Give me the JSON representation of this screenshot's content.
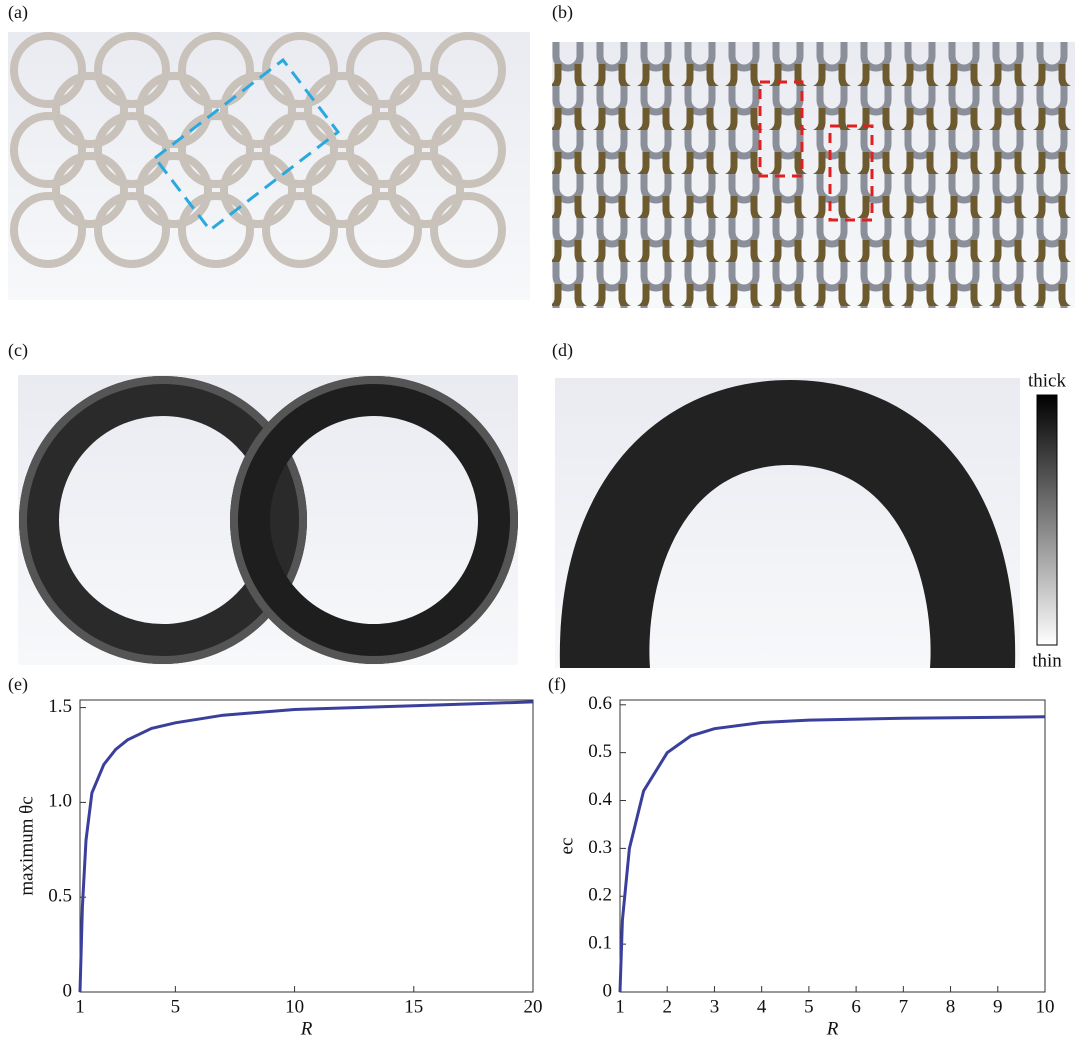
{
  "panels": {
    "a": "(a)",
    "b": "(b)",
    "c": "(c)",
    "d": "(d)"
  },
  "colorbar": {
    "top": "thick",
    "bottom": "thin"
  },
  "chart_data": [
    {
      "type": "line",
      "panel_label": "(e)",
      "xlabel": "R",
      "ylabel": "maximum θc",
      "x": [
        1,
        1.1,
        1.25,
        1.5,
        2,
        2.5,
        3,
        4,
        5,
        7,
        10,
        15,
        20
      ],
      "series": [
        {
          "color": "#3b3f9c",
          "values": [
            0,
            0.45,
            0.8,
            1.05,
            1.2,
            1.28,
            1.33,
            1.39,
            1.42,
            1.46,
            1.49,
            1.51,
            1.53
          ]
        }
      ],
      "xlim": [
        1,
        20
      ],
      "xticks": [
        1,
        5,
        10,
        15,
        20
      ],
      "ylim": [
        0,
        1.54
      ],
      "yticks": [
        0,
        0.5,
        {
          "value": 1,
          "label": "1.0"
        },
        1.5
      ]
    },
    {
      "type": "line",
      "panel_label": "(f)",
      "xlabel": "R",
      "ylabel": "ec",
      "x": [
        1,
        1.05,
        1.2,
        1.5,
        2,
        2.5,
        3,
        4,
        5,
        7,
        10
      ],
      "series": [
        {
          "color": "#3b3f9c",
          "values": [
            0,
            0.15,
            0.3,
            0.42,
            0.5,
            0.535,
            0.55,
            0.563,
            0.568,
            0.572,
            0.575
          ]
        }
      ],
      "xlim": [
        1,
        10
      ],
      "xticks": [
        1,
        2,
        3,
        4,
        5,
        6,
        7,
        8,
        9,
        10
      ],
      "ylim": [
        0,
        0.61
      ],
      "yticks": [
        0,
        0.1,
        0.2,
        0.3,
        0.4,
        0.5,
        0.6
      ]
    }
  ]
}
